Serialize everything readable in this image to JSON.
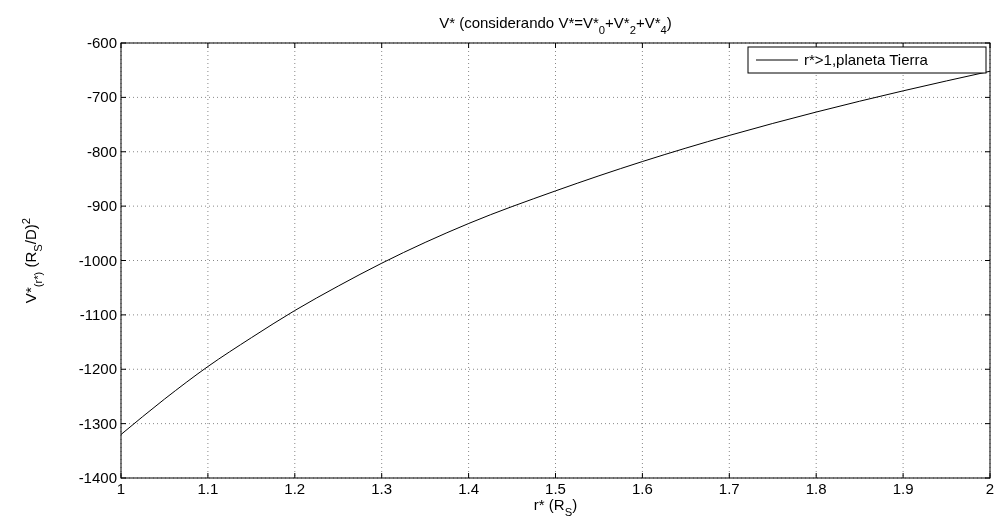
{
  "chart_data": {
    "type": "line",
    "title": "V* (considerando V*=V*$_{0}$+V*$_{2}$+V*$_{4}$)",
    "xlabel": "r* (R$_{S}$)",
    "ylabel": "V*$_{(r*)}$ (R$_{S}$/D)$^{2}$",
    "x": [
      1,
      1.05,
      1.1,
      1.15,
      1.2,
      1.25,
      1.3,
      1.4,
      1.5,
      1.6,
      1.7,
      1.8,
      1.9,
      2
    ],
    "series": [
      {
        "name": "r*>1,planeta Tierra",
        "color": "#000000",
        "values": [
          -1320,
          -1255,
          -1195,
          -1142,
          -1092,
          -1047,
          -1005,
          -932,
          -872,
          -818,
          -770,
          -727,
          -688,
          -652
        ]
      }
    ],
    "xlim": [
      1,
      2
    ],
    "xticks": [
      1,
      1.1,
      1.2,
      1.3,
      1.4,
      1.5,
      1.6,
      1.7,
      1.8,
      1.9,
      2
    ],
    "ylim": [
      -1400,
      -600
    ],
    "yticks": [
      -1400,
      -1300,
      -1200,
      -1100,
      -1000,
      -900,
      -800,
      -700,
      -600
    ],
    "grid": true,
    "legend": "top right",
    "marker": "none",
    "line_style": "solid"
  }
}
